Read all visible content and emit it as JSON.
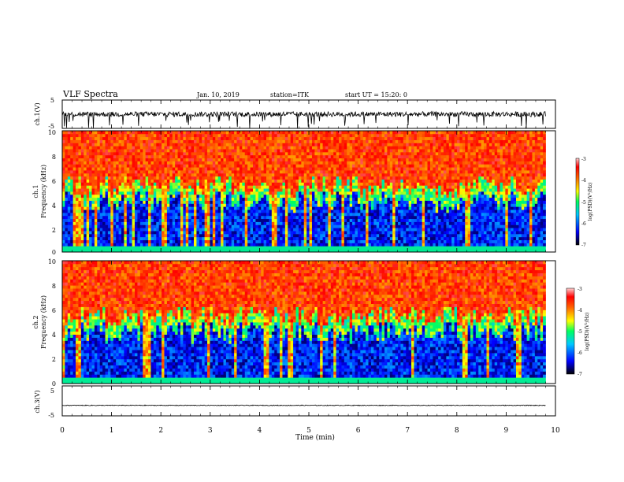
{
  "header": {
    "title": "VLF Spectra",
    "date": "Jan. 10, 2019",
    "station": "station=ITK",
    "start": "start UT =  15:20: 0"
  },
  "chart_data": [
    {
      "type": "line",
      "name": "ch1-waveform",
      "ylabel": "ch.1(V)",
      "ylim": [
        -5,
        5
      ],
      "yticks": [
        "5",
        "-5"
      ],
      "xlim": [
        0,
        10
      ],
      "baseline": 0,
      "data_end": 9.8
    },
    {
      "type": "heatmap",
      "name": "ch1-spectrogram",
      "ylabel_top": "ch.1",
      "ylabel": "Frequency (kHz)",
      "ylim": [
        0,
        10
      ],
      "yticks": [
        "0",
        "2",
        "4",
        "6",
        "8",
        "10"
      ],
      "xlim": [
        0,
        10
      ],
      "data_end": 9.8,
      "colorbar": {
        "label": "log(PSD)(V²/Hz)",
        "range": [
          -7,
          -3
        ],
        "ticks": [
          "-3",
          "-4",
          "-5",
          "-6",
          "-7"
        ]
      }
    },
    {
      "type": "heatmap",
      "name": "ch2-spectrogram",
      "ylabel_top": "ch.2",
      "ylabel": "Frequency (kHz)",
      "ylim": [
        0,
        10
      ],
      "yticks": [
        "0",
        "2",
        "4",
        "6",
        "8",
        "10"
      ],
      "xlim": [
        0,
        10
      ],
      "data_end": 9.8,
      "colorbar": {
        "label": "log(PSD)(V²/Hz)",
        "range": [
          -7,
          -3
        ],
        "ticks": [
          "-3",
          "-4",
          "-5",
          "-6",
          "-7"
        ]
      }
    },
    {
      "type": "line",
      "name": "ch3-waveform",
      "ylabel": "ch.3(V)",
      "ylim": [
        -5,
        5
      ],
      "yticks": [
        "5",
        "-5"
      ],
      "xlim": [
        0,
        10
      ],
      "baseline": -1.5,
      "data_end": 9.8
    }
  ],
  "xaxis": {
    "label": "Time (min)",
    "ticks": [
      "0",
      "1",
      "2",
      "3",
      "4",
      "5",
      "6",
      "7",
      "8",
      "9",
      "10"
    ]
  },
  "colors": {
    "colormap": [
      "#000020",
      "#0000ff",
      "#00c0ff",
      "#00ff80",
      "#ffff00",
      "#ff8000",
      "#ff0000",
      "#ffc0c0"
    ]
  }
}
